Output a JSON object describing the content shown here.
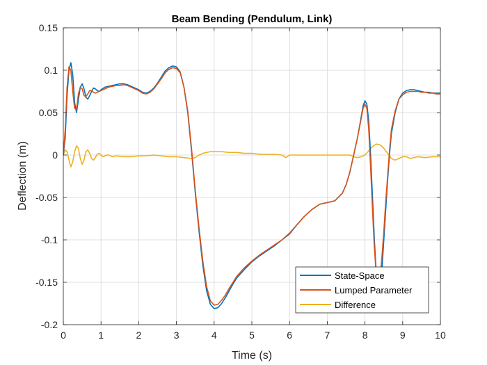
{
  "chart_data": {
    "type": "line",
    "title": "Beam Bending (Pendulum, Link)",
    "xlabel": "Time (s)",
    "ylabel": "Deflection (m)",
    "xlim": [
      0,
      10
    ],
    "ylim": [
      -0.2,
      0.15
    ],
    "grid": true,
    "legend_location": "bottom-right",
    "x_ticks": [
      0,
      1,
      2,
      3,
      4,
      5,
      6,
      7,
      8,
      9,
      10
    ],
    "x_tick_labels": [
      "0",
      "1",
      "2",
      "3",
      "4",
      "5",
      "6",
      "7",
      "8",
      "9",
      "10"
    ],
    "y_ticks": [
      0.15,
      0.1,
      0.05,
      0,
      -0.05,
      -0.1,
      -0.15,
      -0.2
    ],
    "y_tick_labels": [
      "0.15",
      "0.1",
      "0.05",
      "0",
      "-0.05",
      "-0.1",
      "-0.15",
      "-0.2"
    ],
    "series": [
      {
        "name": "State-Space",
        "color": "#0072BD",
        "x": [
          0,
          0.05,
          0.1,
          0.15,
          0.2,
          0.25,
          0.3,
          0.35,
          0.4,
          0.45,
          0.5,
          0.55,
          0.6,
          0.65,
          0.7,
          0.75,
          0.8,
          0.85,
          0.9,
          0.95,
          1.0,
          1.1,
          1.2,
          1.3,
          1.4,
          1.5,
          1.6,
          1.7,
          1.8,
          1.9,
          2.0,
          2.1,
          2.2,
          2.3,
          2.4,
          2.5,
          2.6,
          2.7,
          2.8,
          2.9,
          3.0,
          3.1,
          3.2,
          3.3,
          3.4,
          3.5,
          3.6,
          3.7,
          3.8,
          3.9,
          4.0,
          4.1,
          4.2,
          4.3,
          4.4,
          4.5,
          4.6,
          4.8,
          5.0,
          5.2,
          5.4,
          5.6,
          5.8,
          6.0,
          6.2,
          6.4,
          6.6,
          6.8,
          7.0,
          7.2,
          7.4,
          7.5,
          7.6,
          7.7,
          7.8,
          7.9,
          7.95,
          8.0,
          8.05,
          8.1,
          8.15,
          8.2,
          8.25,
          8.3,
          8.35,
          8.4,
          8.45,
          8.5,
          8.55,
          8.6,
          8.65,
          8.7,
          8.8,
          8.9,
          9.0,
          9.1,
          9.2,
          9.3,
          9.4,
          9.5,
          9.6,
          9.7,
          9.8,
          9.9,
          10.0
        ],
        "y": [
          0.0,
          0.02,
          0.07,
          0.1,
          0.109,
          0.095,
          0.062,
          0.05,
          0.065,
          0.08,
          0.084,
          0.078,
          0.068,
          0.066,
          0.07,
          0.075,
          0.079,
          0.078,
          0.076,
          0.075,
          0.077,
          0.08,
          0.081,
          0.082,
          0.083,
          0.084,
          0.084,
          0.083,
          0.081,
          0.079,
          0.077,
          0.074,
          0.073,
          0.075,
          0.079,
          0.085,
          0.092,
          0.099,
          0.103,
          0.105,
          0.104,
          0.098,
          0.08,
          0.05,
          0.005,
          -0.045,
          -0.09,
          -0.13,
          -0.16,
          -0.176,
          -0.181,
          -0.18,
          -0.175,
          -0.168,
          -0.16,
          -0.152,
          -0.145,
          -0.135,
          -0.126,
          -0.119,
          -0.113,
          -0.107,
          -0.1,
          -0.093,
          -0.082,
          -0.072,
          -0.064,
          -0.058,
          -0.056,
          -0.054,
          -0.045,
          -0.035,
          -0.02,
          0.0,
          0.02,
          0.045,
          0.058,
          0.064,
          0.06,
          0.04,
          0.0,
          -0.05,
          -0.1,
          -0.14,
          -0.16,
          -0.155,
          -0.135,
          -0.1,
          -0.065,
          -0.03,
          0.0,
          0.025,
          0.05,
          0.066,
          0.073,
          0.076,
          0.077,
          0.077,
          0.076,
          0.075,
          0.074,
          0.074,
          0.073,
          0.073,
          0.073
        ]
      },
      {
        "name": "Lumped Parameter",
        "color": "#D95319",
        "x": [
          0,
          0.05,
          0.1,
          0.15,
          0.2,
          0.25,
          0.3,
          0.35,
          0.4,
          0.45,
          0.5,
          0.55,
          0.6,
          0.65,
          0.7,
          0.75,
          0.8,
          0.85,
          0.9,
          0.95,
          1.0,
          1.1,
          1.2,
          1.3,
          1.4,
          1.5,
          1.6,
          1.7,
          1.8,
          1.9,
          2.0,
          2.1,
          2.2,
          2.3,
          2.4,
          2.5,
          2.6,
          2.7,
          2.8,
          2.9,
          3.0,
          3.1,
          3.2,
          3.3,
          3.4,
          3.5,
          3.6,
          3.7,
          3.8,
          3.9,
          4.0,
          4.1,
          4.2,
          4.3,
          4.4,
          4.5,
          4.6,
          4.8,
          5.0,
          5.2,
          5.4,
          5.6,
          5.8,
          6.0,
          6.2,
          6.4,
          6.6,
          6.8,
          7.0,
          7.2,
          7.4,
          7.5,
          7.6,
          7.7,
          7.8,
          7.9,
          7.95,
          8.0,
          8.05,
          8.1,
          8.15,
          8.2,
          8.25,
          8.3,
          8.35,
          8.4,
          8.45,
          8.5,
          8.55,
          8.6,
          8.65,
          8.7,
          8.8,
          8.9,
          9.0,
          9.1,
          9.2,
          9.3,
          9.4,
          9.5,
          9.6,
          9.7,
          9.8,
          9.9,
          10.0
        ],
        "y": [
          0.0,
          0.03,
          0.08,
          0.104,
          0.1,
          0.075,
          0.055,
          0.054,
          0.072,
          0.08,
          0.078,
          0.07,
          0.069,
          0.072,
          0.076,
          0.076,
          0.074,
          0.073,
          0.074,
          0.075,
          0.076,
          0.078,
          0.08,
          0.081,
          0.082,
          0.082,
          0.083,
          0.082,
          0.08,
          0.078,
          0.076,
          0.073,
          0.072,
          0.074,
          0.078,
          0.084,
          0.09,
          0.097,
          0.101,
          0.103,
          0.102,
          0.097,
          0.08,
          0.052,
          0.008,
          -0.042,
          -0.086,
          -0.125,
          -0.155,
          -0.172,
          -0.177,
          -0.176,
          -0.171,
          -0.165,
          -0.157,
          -0.15,
          -0.143,
          -0.133,
          -0.125,
          -0.118,
          -0.112,
          -0.106,
          -0.1,
          -0.092,
          -0.082,
          -0.072,
          -0.064,
          -0.058,
          -0.056,
          -0.054,
          -0.045,
          -0.035,
          -0.02,
          0.0,
          0.02,
          0.043,
          0.055,
          0.06,
          0.055,
          0.03,
          -0.015,
          -0.065,
          -0.11,
          -0.142,
          -0.155,
          -0.145,
          -0.12,
          -0.09,
          -0.055,
          -0.025,
          0.005,
          0.03,
          0.052,
          0.066,
          0.071,
          0.074,
          0.075,
          0.075,
          0.075,
          0.074,
          0.074,
          0.073,
          0.073,
          0.072,
          0.072
        ]
      },
      {
        "name": "Difference",
        "color": "#EDB120",
        "x": [
          0,
          0.05,
          0.1,
          0.15,
          0.2,
          0.25,
          0.3,
          0.35,
          0.4,
          0.45,
          0.5,
          0.55,
          0.6,
          0.65,
          0.7,
          0.75,
          0.8,
          0.85,
          0.9,
          0.95,
          1.0,
          1.05,
          1.1,
          1.15,
          1.2,
          1.3,
          1.4,
          1.6,
          1.8,
          2.0,
          2.2,
          2.4,
          2.6,
          2.8,
          3.0,
          3.2,
          3.4,
          3.5,
          3.6,
          3.7,
          3.8,
          3.9,
          4.0,
          4.1,
          4.2,
          4.4,
          4.6,
          4.8,
          5.0,
          5.2,
          5.4,
          5.6,
          5.8,
          5.9,
          6.0,
          6.1,
          6.2,
          6.4,
          6.6,
          6.8,
          7.0,
          7.2,
          7.4,
          7.6,
          7.7,
          7.8,
          7.9,
          8.0,
          8.1,
          8.2,
          8.3,
          8.4,
          8.5,
          8.6,
          8.7,
          8.8,
          8.9,
          9.0,
          9.1,
          9.2,
          9.4,
          9.6,
          9.8,
          10.0
        ],
        "y": [
          0.0,
          0.006,
          0.004,
          -0.006,
          -0.014,
          -0.008,
          0.004,
          0.011,
          0.008,
          -0.004,
          -0.011,
          -0.006,
          0.004,
          0.006,
          0.002,
          -0.004,
          -0.006,
          -0.003,
          0.001,
          0.002,
          0.0,
          -0.002,
          -0.001,
          0.0,
          0.0,
          -0.002,
          -0.001,
          -0.002,
          -0.002,
          -0.001,
          -0.001,
          0.0,
          -0.001,
          -0.002,
          -0.002,
          -0.003,
          -0.004,
          -0.003,
          0.0,
          0.002,
          0.003,
          0.004,
          0.004,
          0.004,
          0.004,
          0.003,
          0.003,
          0.002,
          0.002,
          0.001,
          0.001,
          0.001,
          0.0,
          -0.003,
          0.0,
          0.0,
          0.0,
          0.0,
          0.0,
          0.0,
          0.0,
          0.0,
          0.0,
          0.0,
          -0.002,
          -0.003,
          -0.002,
          0.0,
          0.005,
          0.01,
          0.013,
          0.012,
          0.008,
          0.002,
          -0.004,
          -0.006,
          -0.004,
          -0.002,
          -0.002,
          -0.004,
          -0.002,
          -0.003,
          -0.002,
          -0.002
        ]
      }
    ]
  }
}
